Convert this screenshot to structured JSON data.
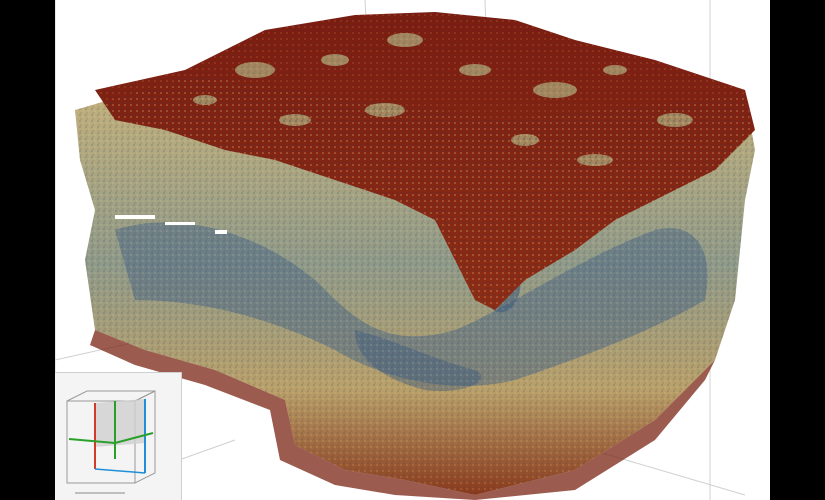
{
  "app": {
    "background": "#000000",
    "canvas_background": "#ffffff"
  },
  "volume": {
    "colormap": [
      "#2f4a6e",
      "#5b7488",
      "#8f9478",
      "#c8b47a",
      "#b97a3e",
      "#8a2a15",
      "#6e180c"
    ]
  },
  "orientation_widget": {
    "axis_colors": {
      "x": "#d23a2a",
      "y": "#1f8fd6",
      "z": "#2aa02a"
    },
    "plane_color": "#cfcfcf"
  }
}
